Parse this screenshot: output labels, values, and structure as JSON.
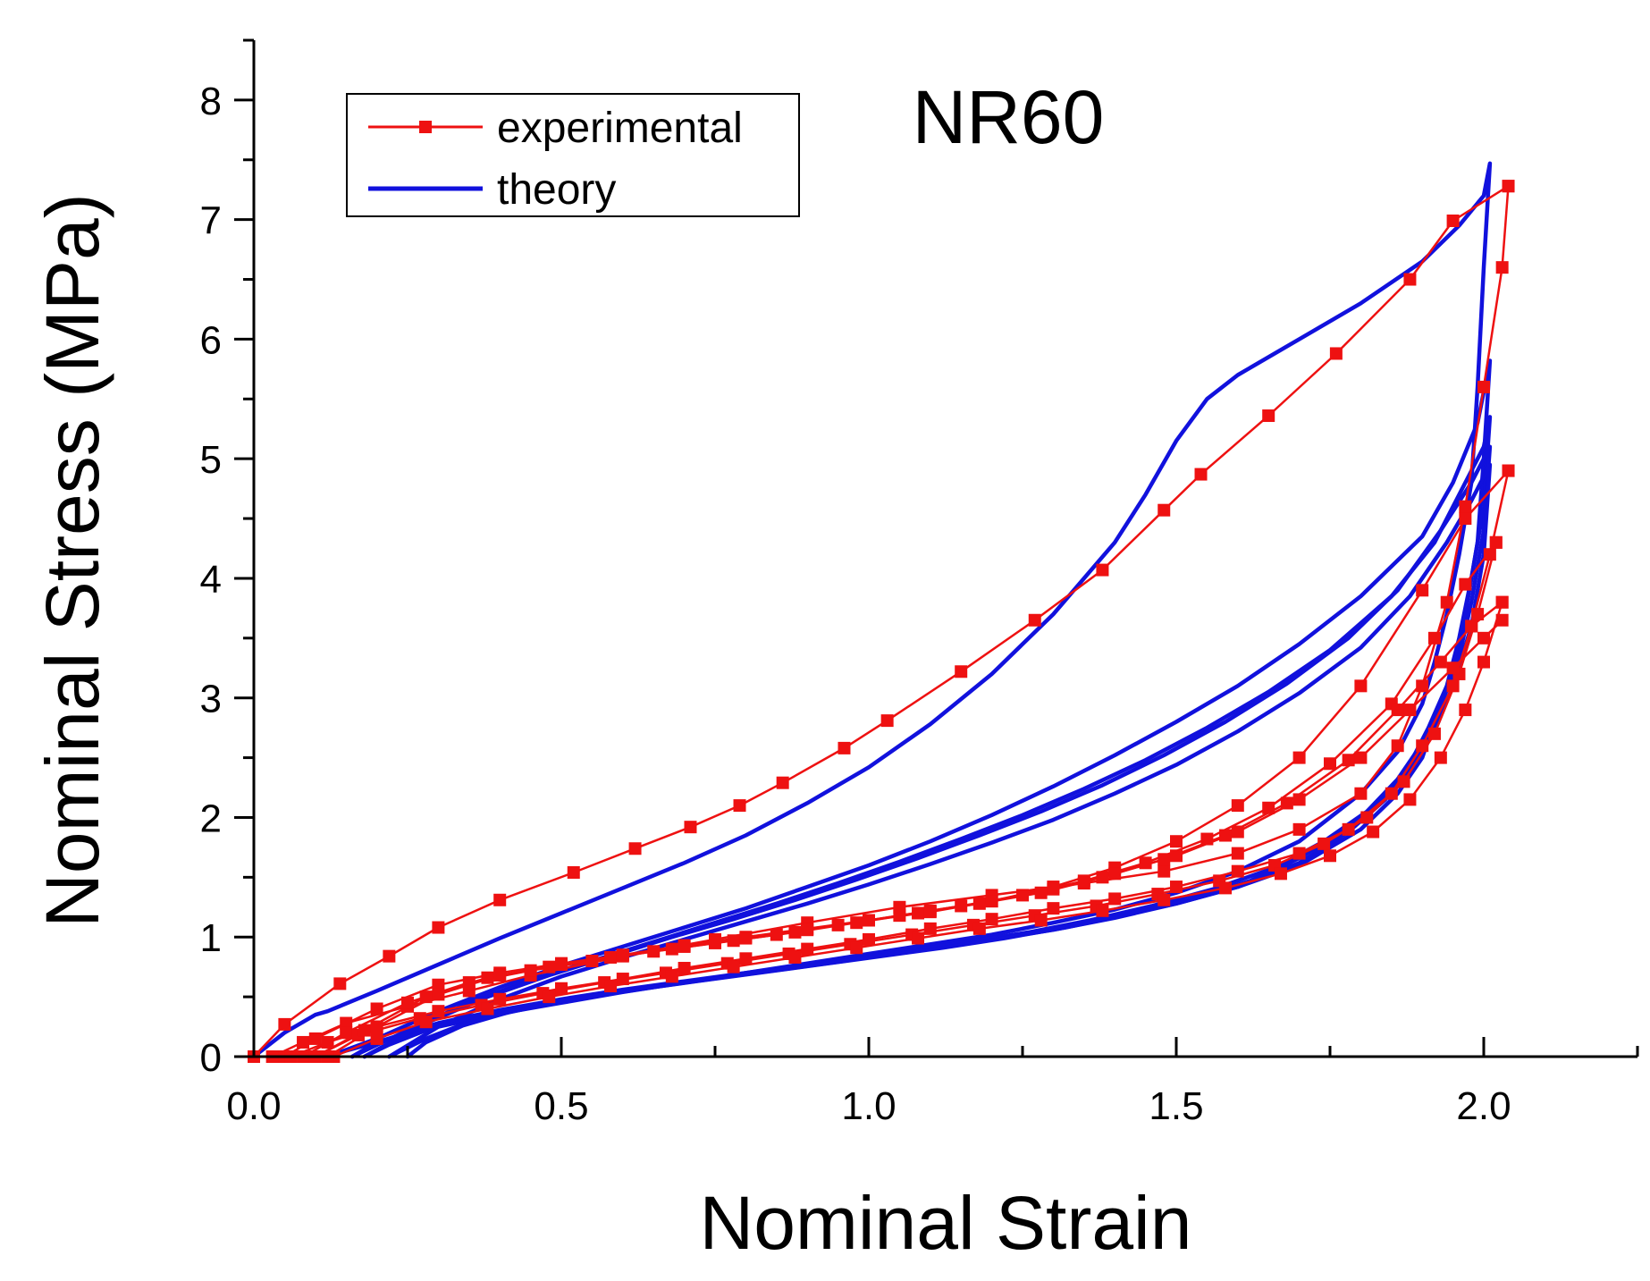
{
  "chart_data": {
    "type": "line",
    "title": "NR60",
    "xlabel": "Nominal Strain",
    "ylabel": "Nominal Stress (MPa)",
    "xlim": [
      0,
      2.25
    ],
    "ylim": [
      0,
      8.5
    ],
    "x_ticks": [
      {
        "value": 0.0,
        "label": "0.0"
      },
      {
        "value": 0.5,
        "label": "0.5"
      },
      {
        "value": 1.0,
        "label": "1.0"
      },
      {
        "value": 1.5,
        "label": "1.5"
      },
      {
        "value": 2.0,
        "label": "2.0"
      }
    ],
    "y_ticks": [
      {
        "value": 0,
        "label": "0"
      },
      {
        "value": 1,
        "label": "1"
      },
      {
        "value": 2,
        "label": "2"
      },
      {
        "value": 3,
        "label": "3"
      },
      {
        "value": 4,
        "label": "4"
      },
      {
        "value": 5,
        "label": "5"
      },
      {
        "value": 6,
        "label": "6"
      },
      {
        "value": 7,
        "label": "7"
      },
      {
        "value": 8,
        "label": "8"
      }
    ],
    "grid": false,
    "legend_position": "top-left",
    "colors": {
      "experimental": "#ee1111",
      "theory": "#1111dd"
    },
    "legend": [
      {
        "name": "experimental",
        "marker": "square",
        "color": "#ee1111"
      },
      {
        "name": "theory",
        "marker": "none",
        "color": "#1111dd"
      }
    ],
    "series": [
      {
        "name": "experimental",
        "id": "exp-load-1",
        "x": [
          0,
          0.05,
          0.14,
          0.22,
          0.3,
          0.4,
          0.52,
          0.62,
          0.71,
          0.79,
          0.86,
          0.96,
          1.03,
          1.15,
          1.27,
          1.38,
          1.48,
          1.54,
          1.65,
          1.76,
          1.88,
          1.95,
          2.04
        ],
        "y": [
          0,
          0.27,
          0.61,
          0.84,
          1.08,
          1.31,
          1.54,
          1.74,
          1.92,
          2.1,
          2.29,
          2.58,
          2.81,
          3.22,
          3.65,
          4.07,
          4.57,
          4.87,
          5.36,
          5.88,
          6.5,
          6.99,
          7.28
        ]
      },
      {
        "name": "experimental",
        "id": "exp-unload-1",
        "x": [
          2.04,
          2.03,
          2.0,
          1.97,
          1.94,
          1.9,
          1.86,
          1.8,
          1.7,
          1.6,
          1.48,
          1.35,
          1.2,
          1.05,
          0.9,
          0.75,
          0.6,
          0.45,
          0.35,
          0.25,
          0.15,
          0.08,
          0.03
        ],
        "y": [
          7.28,
          6.6,
          5.6,
          4.6,
          3.8,
          3.1,
          2.6,
          2.2,
          1.9,
          1.7,
          1.55,
          1.45,
          1.35,
          1.25,
          1.12,
          0.98,
          0.84,
          0.68,
          0.55,
          0.42,
          0.28,
          0.12,
          0
        ]
      },
      {
        "name": "experimental",
        "id": "exp-load-2",
        "x": [
          0.05,
          0.1,
          0.2,
          0.3,
          0.4,
          0.5,
          0.6,
          0.7,
          0.8,
          0.9,
          1.0,
          1.1,
          1.2,
          1.3,
          1.4,
          1.5,
          1.6,
          1.7,
          1.8,
          1.9,
          1.97,
          2.04
        ],
        "y": [
          0,
          0.15,
          0.4,
          0.6,
          0.7,
          0.78,
          0.85,
          0.93,
          1.0,
          1.07,
          1.14,
          1.21,
          1.3,
          1.42,
          1.58,
          1.8,
          2.1,
          2.5,
          3.1,
          3.9,
          4.5,
          4.9
        ]
      },
      {
        "name": "experimental",
        "id": "exp-unload-2",
        "x": [
          2.04,
          2.01,
          1.98,
          1.95,
          1.9,
          1.85,
          1.78,
          1.7,
          1.6,
          1.5,
          1.4,
          1.3,
          1.2,
          1.1,
          1.0,
          0.9,
          0.8,
          0.7,
          0.6,
          0.5,
          0.4,
          0.3,
          0.2,
          0.12,
          0.06
        ],
        "y": [
          4.9,
          4.2,
          3.6,
          3.1,
          2.6,
          2.2,
          1.9,
          1.7,
          1.55,
          1.42,
          1.32,
          1.24,
          1.15,
          1.07,
          0.98,
          0.9,
          0.82,
          0.74,
          0.65,
          0.57,
          0.48,
          0.38,
          0.25,
          0.12,
          0
        ]
      },
      {
        "name": "experimental",
        "id": "exp-load-3",
        "x": [
          0.08,
          0.15,
          0.25,
          0.35,
          0.45,
          0.55,
          0.65,
          0.75,
          0.85,
          0.95,
          1.05,
          1.15,
          1.25,
          1.35,
          1.45,
          1.55,
          1.65,
          1.75,
          1.85,
          1.92,
          1.97,
          2.02
        ],
        "y": [
          0,
          0.2,
          0.45,
          0.62,
          0.72,
          0.8,
          0.88,
          0.95,
          1.02,
          1.1,
          1.18,
          1.26,
          1.35,
          1.47,
          1.62,
          1.82,
          2.08,
          2.45,
          2.95,
          3.5,
          3.95,
          4.3
        ]
      },
      {
        "name": "experimental",
        "id": "exp-unload-3",
        "x": [
          2.02,
          1.99,
          1.96,
          1.92,
          1.87,
          1.81,
          1.74,
          1.66,
          1.57,
          1.47,
          1.37,
          1.27,
          1.17,
          1.07,
          0.97,
          0.87,
          0.77,
          0.67,
          0.57,
          0.47,
          0.37,
          0.27,
          0.17,
          0.1
        ],
        "y": [
          4.3,
          3.7,
          3.2,
          2.7,
          2.3,
          2.0,
          1.78,
          1.6,
          1.47,
          1.36,
          1.26,
          1.18,
          1.1,
          1.02,
          0.94,
          0.86,
          0.78,
          0.7,
          0.62,
          0.53,
          0.43,
          0.32,
          0.18,
          0
        ]
      },
      {
        "name": "experimental",
        "id": "exp-load-4",
        "x": [
          0.1,
          0.18,
          0.28,
          0.38,
          0.48,
          0.58,
          0.68,
          0.78,
          0.88,
          0.98,
          1.08,
          1.18,
          1.28,
          1.38,
          1.48,
          1.58,
          1.68,
          1.78,
          1.86,
          1.93,
          1.98,
          2.03
        ],
        "y": [
          0,
          0.22,
          0.5,
          0.66,
          0.75,
          0.83,
          0.9,
          0.97,
          1.04,
          1.12,
          1.2,
          1.28,
          1.37,
          1.5,
          1.65,
          1.85,
          2.12,
          2.48,
          2.9,
          3.3,
          3.6,
          3.8
        ]
      },
      {
        "name": "experimental",
        "id": "exp-unload-4",
        "x": [
          2.03,
          2.0,
          1.97,
          1.93,
          1.88,
          1.82,
          1.75,
          1.67,
          1.58,
          1.48,
          1.38,
          1.28,
          1.18,
          1.08,
          0.98,
          0.88,
          0.78,
          0.68,
          0.58,
          0.48,
          0.38,
          0.28,
          0.2,
          0.13
        ],
        "y": [
          3.8,
          3.3,
          2.9,
          2.5,
          2.15,
          1.88,
          1.68,
          1.53,
          1.41,
          1.31,
          1.22,
          1.14,
          1.07,
          0.99,
          0.91,
          0.83,
          0.75,
          0.67,
          0.59,
          0.5,
          0.4,
          0.29,
          0.15,
          0
        ]
      },
      {
        "name": "experimental",
        "id": "exp-load-5",
        "x": [
          0.12,
          0.2,
          0.3,
          0.4,
          0.5,
          0.6,
          0.7,
          0.8,
          0.9,
          1.0,
          1.1,
          1.2,
          1.3,
          1.4,
          1.5,
          1.6,
          1.7,
          1.8,
          1.88,
          1.95,
          2.0,
          2.03
        ],
        "y": [
          0,
          0.25,
          0.52,
          0.68,
          0.77,
          0.85,
          0.92,
          0.99,
          1.06,
          1.14,
          1.22,
          1.3,
          1.4,
          1.53,
          1.68,
          1.88,
          2.15,
          2.5,
          2.9,
          3.25,
          3.5,
          3.65
        ]
      },
      {
        "name": "theory",
        "id": "th-1",
        "x": [
          0,
          0.05,
          0.1,
          0.12,
          0.2,
          0.3,
          0.4,
          0.5,
          0.6,
          0.7,
          0.8,
          0.9,
          1.0,
          1.1,
          1.2,
          1.3,
          1.4,
          1.45,
          1.5,
          1.55,
          1.6,
          1.7,
          1.8,
          1.9,
          1.96,
          2.0,
          2.01,
          2.0,
          1.99,
          1.98,
          1.96,
          1.94,
          1.92,
          1.9,
          1.86,
          1.8,
          1.7,
          1.6,
          1.5,
          1.4,
          1.3,
          1.2,
          1.1,
          1.0,
          0.9,
          0.8,
          0.7,
          0.6,
          0.5,
          0.4,
          0.3,
          0.2,
          0.15,
          0.12
        ],
        "y": [
          0,
          0.2,
          0.35,
          0.38,
          0.55,
          0.77,
          0.99,
          1.2,
          1.41,
          1.62,
          1.85,
          2.12,
          2.42,
          2.78,
          3.2,
          3.7,
          4.3,
          4.7,
          5.15,
          5.5,
          5.7,
          6.0,
          6.3,
          6.65,
          6.95,
          7.2,
          7.47,
          6.6,
          5.6,
          4.8,
          4.2,
          3.7,
          3.3,
          2.95,
          2.55,
          2.2,
          1.8,
          1.55,
          1.37,
          1.23,
          1.12,
          1.02,
          0.94,
          0.86,
          0.78,
          0.7,
          0.62,
          0.54,
          0.45,
          0.36,
          0.25,
          0.12,
          0.05,
          0
        ]
      },
      {
        "name": "theory",
        "id": "th-2",
        "x": [
          0.12,
          0.2,
          0.3,
          0.4,
          0.5,
          0.6,
          0.7,
          0.8,
          0.9,
          1.0,
          1.1,
          1.2,
          1.3,
          1.4,
          1.5,
          1.6,
          1.7,
          1.8,
          1.9,
          1.95,
          1.99,
          2.01,
          2.0,
          1.99,
          1.97,
          1.95,
          1.92,
          1.9,
          1.86,
          1.8,
          1.7,
          1.6,
          1.5,
          1.4,
          1.3,
          1.2,
          1.1,
          1.0,
          0.9,
          0.8,
          0.7,
          0.6,
          0.5,
          0.4,
          0.3,
          0.2,
          0.16
        ],
        "y": [
          0,
          0.15,
          0.38,
          0.58,
          0.76,
          0.92,
          1.08,
          1.24,
          1.42,
          1.6,
          1.8,
          2.02,
          2.26,
          2.52,
          2.8,
          3.1,
          3.45,
          3.85,
          4.35,
          4.8,
          5.3,
          5.82,
          5.0,
          4.3,
          3.7,
          3.2,
          2.8,
          2.5,
          2.2,
          1.9,
          1.6,
          1.42,
          1.28,
          1.17,
          1.07,
          0.99,
          0.91,
          0.84,
          0.77,
          0.7,
          0.63,
          0.56,
          0.48,
          0.39,
          0.28,
          0.12,
          0
        ]
      },
      {
        "name": "theory",
        "id": "th-3",
        "x": [
          0.16,
          0.25,
          0.35,
          0.45,
          0.55,
          0.65,
          0.75,
          0.85,
          0.95,
          1.05,
          1.15,
          1.25,
          1.35,
          1.45,
          1.55,
          1.65,
          1.75,
          1.85,
          1.92,
          1.97,
          2.0,
          2.01,
          2.0,
          1.98,
          1.96,
          1.94,
          1.91,
          1.88,
          1.84,
          1.78,
          1.7,
          1.6,
          1.5,
          1.4,
          1.3,
          1.2,
          1.1,
          1.0,
          0.9,
          0.8,
          0.7,
          0.6,
          0.5,
          0.4,
          0.3,
          0.22,
          0.18
        ],
        "y": [
          0,
          0.22,
          0.45,
          0.64,
          0.8,
          0.96,
          1.12,
          1.28,
          1.45,
          1.63,
          1.82,
          2.02,
          2.24,
          2.48,
          2.75,
          3.05,
          3.4,
          3.85,
          4.3,
          4.8,
          5.1,
          5.35,
          4.6,
          4.0,
          3.5,
          3.1,
          2.75,
          2.45,
          2.15,
          1.88,
          1.62,
          1.42,
          1.28,
          1.16,
          1.06,
          0.98,
          0.9,
          0.83,
          0.76,
          0.69,
          0.62,
          0.55,
          0.47,
          0.38,
          0.26,
          0.1,
          0
        ]
      },
      {
        "name": "theory",
        "id": "th-4",
        "x": [
          0.18,
          0.28,
          0.38,
          0.48,
          0.58,
          0.68,
          0.78,
          0.88,
          0.98,
          1.08,
          1.18,
          1.28,
          1.38,
          1.48,
          1.58,
          1.68,
          1.78,
          1.86,
          1.93,
          1.98,
          2.01,
          2.0,
          1.98,
          1.96,
          1.93,
          1.9,
          1.86,
          1.81,
          1.74,
          1.66,
          1.56,
          1.46,
          1.36,
          1.26,
          1.16,
          1.06,
          0.96,
          0.86,
          0.76,
          0.66,
          0.56,
          0.46,
          0.36,
          0.28,
          0.22
        ],
        "y": [
          0,
          0.28,
          0.5,
          0.68,
          0.84,
          1.0,
          1.15,
          1.31,
          1.48,
          1.66,
          1.85,
          2.05,
          2.27,
          2.52,
          2.8,
          3.12,
          3.5,
          3.9,
          4.4,
          4.8,
          5.1,
          4.4,
          3.8,
          3.35,
          2.95,
          2.62,
          2.32,
          2.05,
          1.8,
          1.58,
          1.4,
          1.26,
          1.14,
          1.04,
          0.96,
          0.88,
          0.8,
          0.73,
          0.66,
          0.59,
          0.51,
          0.42,
          0.31,
          0.15,
          0
        ]
      },
      {
        "name": "theory",
        "id": "th-5",
        "x": [
          0.22,
          0.3,
          0.4,
          0.5,
          0.6,
          0.7,
          0.8,
          0.9,
          1.0,
          1.1,
          1.2,
          1.3,
          1.4,
          1.5,
          1.6,
          1.7,
          1.8,
          1.88,
          1.94,
          1.98,
          2.01,
          2.0,
          1.98,
          1.95,
          1.92,
          1.88,
          1.83,
          1.77,
          1.7,
          1.62,
          1.52,
          1.42,
          1.32,
          1.22,
          1.12,
          1.02,
          0.92,
          0.82,
          0.72,
          0.62,
          0.52,
          0.42,
          0.34,
          0.28,
          0.25
        ],
        "y": [
          0,
          0.25,
          0.48,
          0.67,
          0.83,
          0.98,
          1.13,
          1.28,
          1.44,
          1.61,
          1.79,
          1.98,
          2.2,
          2.44,
          2.72,
          3.04,
          3.42,
          3.85,
          4.3,
          4.65,
          4.95,
          4.2,
          3.6,
          3.1,
          2.72,
          2.4,
          2.12,
          1.88,
          1.66,
          1.47,
          1.31,
          1.19,
          1.08,
          0.99,
          0.91,
          0.84,
          0.77,
          0.7,
          0.63,
          0.56,
          0.48,
          0.38,
          0.26,
          0.12,
          0
        ]
      }
    ]
  }
}
